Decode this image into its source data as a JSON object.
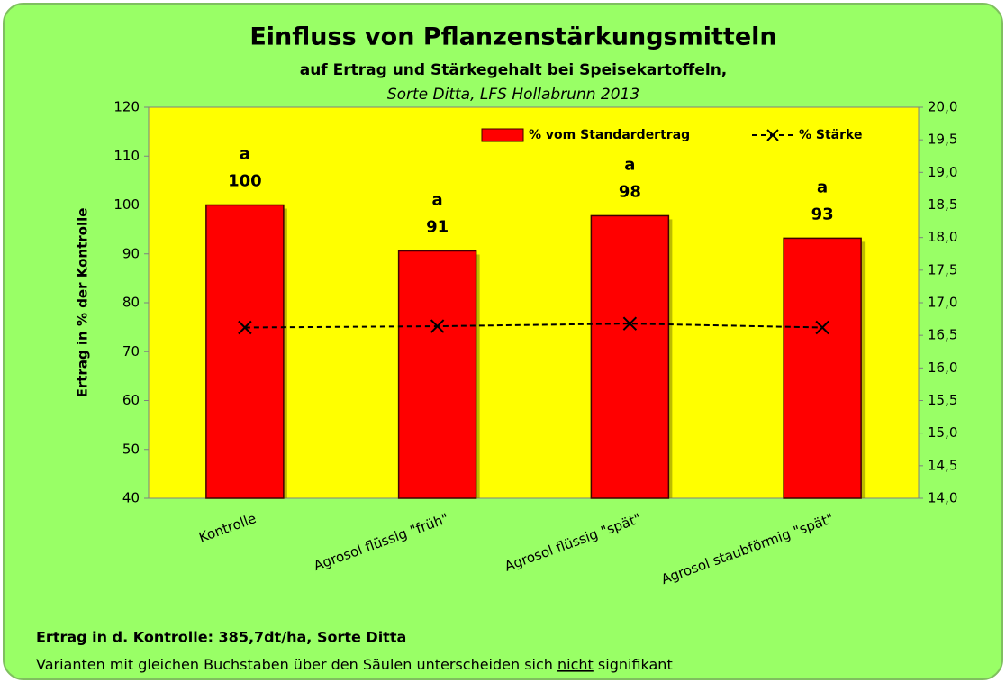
{
  "chart_data": {
    "type": "bar",
    "title": "Einfluss von Pflanzenstärkungsmitteln",
    "subtitle": "auf Ertrag und Stärkegehalt bei Speisekartoffeln,",
    "subtitle2": "Sorte Ditta, LFS Hollabrunn 2013",
    "ylabel": "Ertrag in % der Kontrolle",
    "categories": [
      "Kontrolle",
      "Agrosol flüssig \"früh\"",
      "Agrosol flüssig \"spät\"",
      "Agrosol staubförmig \"spät\""
    ],
    "letters": [
      "a",
      "a",
      "a",
      "a"
    ],
    "series": [
      {
        "name": "% vom Standardertrag",
        "type": "bar",
        "color": "#ff0000",
        "values": [
          100,
          90.6,
          97.8,
          93.2
        ],
        "value_labels": [
          "100",
          "91",
          "98",
          "93"
        ]
      },
      {
        "name": "% Stärke",
        "type": "line",
        "color": "#000000",
        "axis": "y2",
        "values": [
          16.62,
          16.64,
          16.68,
          16.62
        ]
      }
    ],
    "ylim": [
      40,
      120
    ],
    "yticks": [
      40,
      50,
      60,
      70,
      80,
      90,
      100,
      110,
      120
    ],
    "y2lim": [
      14,
      20
    ],
    "y2ticks": [
      {
        "value": 14,
        "label": "14,0"
      },
      {
        "value": 14.5,
        "label": "14,5"
      },
      {
        "value": 15,
        "label": "15,0"
      },
      {
        "value": 15.5,
        "label": "15,5"
      },
      {
        "value": 16,
        "label": "16,0"
      },
      {
        "value": 16.5,
        "label": "16,5"
      },
      {
        "value": 17,
        "label": "17,0"
      },
      {
        "value": 17.5,
        "label": "17,5"
      },
      {
        "value": 18,
        "label": "18,0"
      },
      {
        "value": 18.5,
        "label": "18,5"
      },
      {
        "value": 19,
        "label": "19,0"
      },
      {
        "value": 19.5,
        "label": "19,5"
      },
      {
        "value": 20,
        "label": "20,0"
      }
    ],
    "legend": "top-right",
    "footnote": "Ertrag in d. Kontrolle: 385,7dt/ha, Sorte Ditta",
    "note": [
      "Varianten mit gleichen Buchstaben über den Säulen unterscheiden sich ",
      "nicht",
      " signifikant"
    ]
  }
}
